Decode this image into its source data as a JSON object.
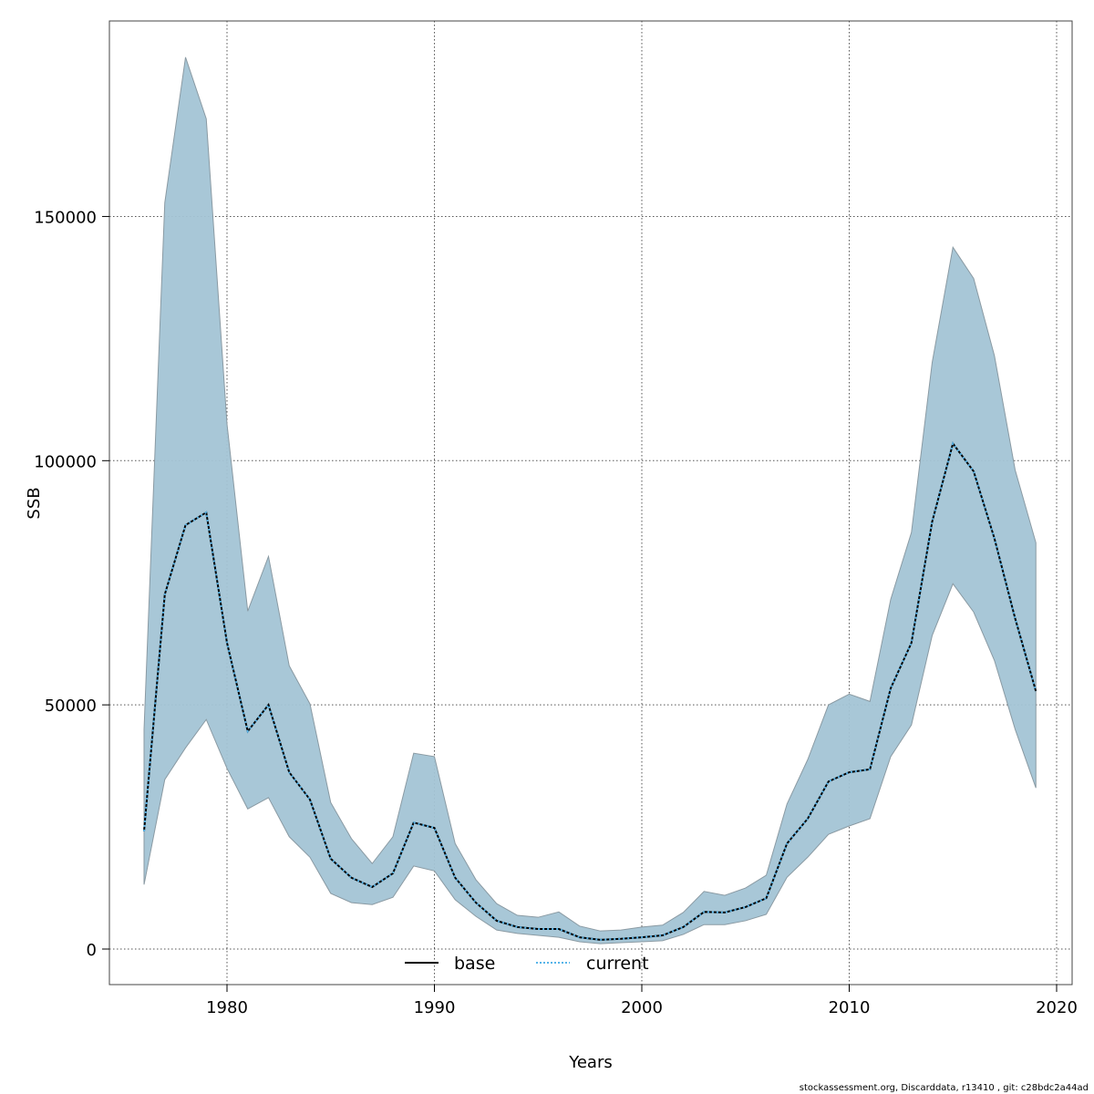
{
  "chart_data": {
    "type": "line",
    "title": "",
    "xlabel": "Years",
    "ylabel": "SSB",
    "xlim": [
      1974.2,
      2020.7
    ],
    "ylim": [
      -7000,
      190000
    ],
    "xticks": [
      1980,
      1990,
      2000,
      2010,
      2020
    ],
    "yticks": [
      0,
      50000,
      100000,
      150000
    ],
    "grid": true,
    "legend_position": "bottom-center",
    "band_color": "#a3c4d5",
    "x": [
      1976,
      1977,
      1978,
      1979,
      1980,
      1981,
      1982,
      1983,
      1984,
      1985,
      1986,
      1987,
      1988,
      1989,
      1990,
      1991,
      1992,
      1993,
      1994,
      1995,
      1996,
      1997,
      1998,
      1999,
      2000,
      2001,
      2002,
      2003,
      2004,
      2005,
      2006,
      2007,
      2008,
      2009,
      2010,
      2011,
      2012,
      2013,
      2014,
      2015,
      2016,
      2017,
      2018,
      2019
    ],
    "upper": [
      45000,
      152800,
      182600,
      170000,
      107500,
      69200,
      80400,
      58000,
      50200,
      30000,
      22600,
      17500,
      23000,
      40100,
      39400,
      21600,
      14200,
      9300,
      6900,
      6500,
      7600,
      4700,
      3700,
      3900,
      4500,
      4900,
      7500,
      11800,
      11000,
      12500,
      15100,
      29700,
      38800,
      50000,
      52200,
      50700,
      71600,
      85300,
      120100,
      143700,
      137300,
      121500,
      98100,
      83200
    ],
    "lower": [
      13200,
      34700,
      41200,
      47000,
      37000,
      28700,
      31000,
      23000,
      18800,
      11400,
      9500,
      9100,
      10600,
      17000,
      16000,
      10100,
      6700,
      3900,
      3200,
      2800,
      2400,
      1500,
      1100,
      1300,
      1500,
      1700,
      3000,
      5000,
      5000,
      5800,
      7100,
      14700,
      18800,
      23500,
      25200,
      26700,
      39400,
      45900,
      64200,
      74800,
      69000,
      59100,
      45000,
      33000
    ],
    "series": [
      {
        "name": "base",
        "color": "#000000",
        "style": "solid",
        "values": [
          24100,
          72600,
          86800,
          89400,
          62700,
          44600,
          50000,
          36200,
          30600,
          18500,
          14600,
          12700,
          15500,
          25900,
          24800,
          14600,
          9500,
          5800,
          4500,
          4100,
          4100,
          2400,
          1900,
          2100,
          2400,
          2800,
          4500,
          7600,
          7500,
          8600,
          10400,
          21600,
          26700,
          34300,
          36200,
          36800,
          53400,
          62700,
          87500,
          103500,
          97800,
          84100,
          67700,
          52800
        ]
      },
      {
        "name": "current",
        "color": "#56b4e9",
        "style": "dotted",
        "values": [
          24100,
          72600,
          86800,
          89400,
          62700,
          44600,
          50000,
          36200,
          30600,
          18500,
          14600,
          12700,
          15500,
          25900,
          24800,
          14600,
          9500,
          5800,
          4500,
          4100,
          4100,
          2400,
          1900,
          2100,
          2400,
          2800,
          4500,
          7600,
          7500,
          8600,
          10400,
          21600,
          26700,
          34300,
          36200,
          36800,
          53400,
          62700,
          87500,
          103500,
          97800,
          84100,
          67700,
          52800
        ]
      }
    ]
  },
  "footer": "stockassessment.org, Discarddata, r13410 , git: c28bdc2a44ad"
}
